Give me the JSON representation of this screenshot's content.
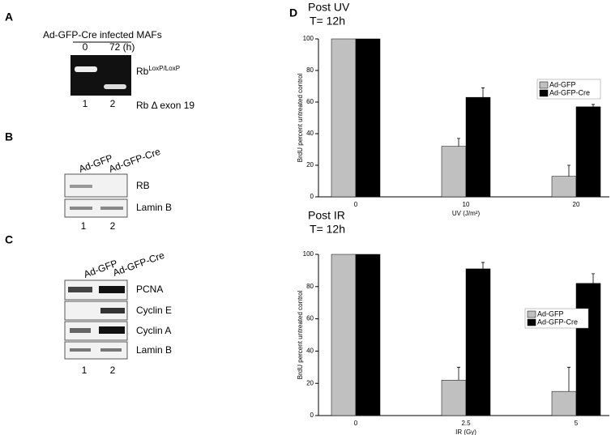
{
  "panels": {
    "a": {
      "letter": "A",
      "caption": "Ad-GFP-Cre infected MAFs",
      "lanes_top": [
        "0",
        "72 (h)"
      ],
      "band_1": "Rb",
      "band_1_sup": "LoxP/LoxP",
      "band_2": "Rb Δ exon 19",
      "lanes": [
        "1",
        "2"
      ]
    },
    "b": {
      "letter": "B",
      "columns": [
        "Ad-GFP",
        "Ad-GFP-Cre"
      ],
      "rows": [
        "RB",
        "Lamin B"
      ],
      "lanes": [
        "1",
        "2"
      ]
    },
    "c": {
      "letter": "C",
      "columns": [
        "Ad-GFP",
        "Ad-GFP-Cre"
      ],
      "rows": [
        "PCNA",
        "Cyclin E",
        "Cyclin A",
        "Lamin B"
      ],
      "lanes": [
        "1",
        "2"
      ]
    },
    "d": {
      "letter": "D"
    }
  },
  "chart_data": [
    {
      "type": "bar",
      "title": "Post UV",
      "subtitle": "T= 12h",
      "x_label": "UV (J/m²)",
      "y_label": "BrdU percent untreated control",
      "categories": [
        "0",
        "10",
        "20"
      ],
      "ylim": [
        0,
        100
      ],
      "yticks": [
        0,
        20,
        40,
        60,
        80,
        100
      ],
      "legend": "right",
      "series": [
        {
          "name": "Ad-GFP",
          "color": "#c0c0c0",
          "values": [
            100,
            32,
            13
          ],
          "errors": [
            0,
            5,
            7
          ]
        },
        {
          "name": "Ad-GFP-Cre",
          "color": "#000000",
          "values": [
            100,
            63,
            57
          ],
          "errors": [
            0,
            6,
            1.5
          ]
        }
      ]
    },
    {
      "type": "bar",
      "title": "Post IR",
      "subtitle": "T= 12h",
      "x_label": "IR (Gy)",
      "y_label": "BrdU percent untreated control",
      "categories": [
        "0",
        "2.5",
        "5"
      ],
      "ylim": [
        0,
        100
      ],
      "yticks": [
        0,
        20,
        40,
        60,
        80,
        100
      ],
      "legend": "right",
      "series": [
        {
          "name": "Ad-GFP",
          "color": "#c0c0c0",
          "values": [
            100,
            22,
            15
          ],
          "errors": [
            0,
            8,
            15
          ]
        },
        {
          "name": "Ad-GFP-Cre",
          "color": "#000000",
          "values": [
            100,
            91,
            82
          ],
          "errors": [
            0,
            4,
            6
          ]
        }
      ]
    }
  ]
}
